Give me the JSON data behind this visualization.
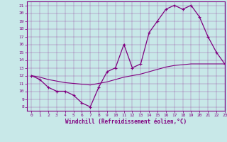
{
  "xlabel": "Windchill (Refroidissement éolien,°C)",
  "bg_color": "#c8e8e8",
  "line_color": "#800080",
  "x_hours": [
    0,
    1,
    2,
    3,
    4,
    5,
    6,
    7,
    8,
    9,
    10,
    11,
    12,
    13,
    14,
    15,
    16,
    17,
    18,
    19,
    20,
    21,
    22,
    23
  ],
  "temp_line": [
    12,
    11.5,
    10.5,
    10,
    10,
    9.5,
    8.5,
    8,
    10.5,
    12.5,
    13,
    16,
    13,
    13.5,
    17.5,
    19,
    20.5,
    21,
    20.5,
    21,
    19.5,
    17,
    15,
    13.5
  ],
  "smooth_line": [
    12,
    11.8,
    11.5,
    11.3,
    11.1,
    11.0,
    10.9,
    10.8,
    11.0,
    11.2,
    11.5,
    11.8,
    12.0,
    12.2,
    12.5,
    12.8,
    13.1,
    13.3,
    13.4,
    13.5,
    13.5,
    13.5,
    13.5,
    13.5
  ],
  "ylim": [
    7.5,
    21.5
  ],
  "xlim": [
    -0.5,
    23
  ],
  "yticks": [
    8,
    9,
    10,
    11,
    12,
    13,
    14,
    15,
    16,
    17,
    18,
    19,
    20,
    21
  ],
  "xticks": [
    0,
    1,
    2,
    3,
    4,
    5,
    6,
    7,
    8,
    9,
    10,
    11,
    12,
    13,
    14,
    15,
    16,
    17,
    18,
    19,
    20,
    21,
    22,
    23
  ],
  "grid_alpha": 0.6,
  "tick_fontsize": 4.5,
  "xlabel_fontsize": 5.5
}
